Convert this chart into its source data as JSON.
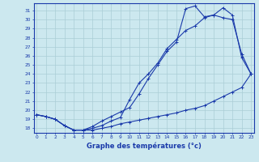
{
  "xlabel": "Graphe des températures (°c)",
  "background_color": "#cce8ef",
  "grid_color": "#aacdd6",
  "line_color": "#1a3aaa",
  "hours": [
    0,
    1,
    2,
    3,
    4,
    5,
    6,
    7,
    8,
    9,
    10,
    11,
    12,
    13,
    14,
    15,
    16,
    17,
    18,
    19,
    20,
    21,
    22,
    23
  ],
  "line1": [
    19.5,
    19.3,
    19.0,
    18.3,
    17.8,
    17.8,
    17.8,
    18.0,
    18.2,
    18.5,
    18.7,
    18.9,
    19.1,
    19.3,
    19.5,
    19.7,
    20.0,
    20.2,
    20.5,
    21.0,
    21.5,
    22.0,
    22.5,
    24.0
  ],
  "line2": [
    19.5,
    19.3,
    19.0,
    18.3,
    17.8,
    17.8,
    18.0,
    18.3,
    18.8,
    19.2,
    21.2,
    23.0,
    24.0,
    25.2,
    26.8,
    27.8,
    28.8,
    29.3,
    30.2,
    30.5,
    30.2,
    30.0,
    26.2,
    24.0
  ],
  "line3": [
    19.5,
    19.3,
    19.0,
    18.3,
    17.8,
    17.8,
    18.2,
    18.8,
    19.3,
    19.8,
    20.3,
    21.8,
    23.5,
    25.0,
    26.5,
    27.5,
    31.2,
    31.5,
    30.3,
    30.5,
    31.3,
    30.5,
    25.8,
    24.0
  ],
  "ylim": [
    17.5,
    31.8
  ],
  "xlim": [
    -0.3,
    23.3
  ],
  "yticks": [
    18,
    19,
    20,
    21,
    22,
    23,
    24,
    25,
    26,
    27,
    28,
    29,
    30,
    31
  ],
  "xticks": [
    0,
    1,
    2,
    3,
    4,
    5,
    6,
    7,
    8,
    9,
    10,
    11,
    12,
    13,
    14,
    15,
    16,
    17,
    18,
    19,
    20,
    21,
    22,
    23
  ],
  "xlabel_fontsize": 6.0,
  "tick_fontsize": 4.2,
  "lw": 0.8,
  "ms": 2.5
}
